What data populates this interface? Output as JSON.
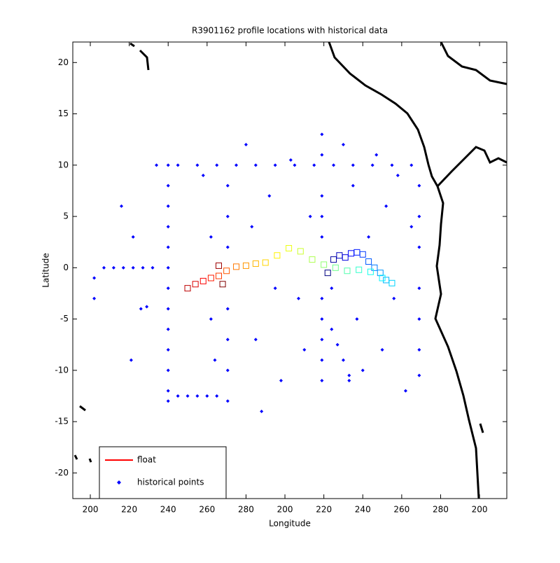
{
  "chart_data": {
    "type": "scatter",
    "title": "R3901162 profile locations with historical data",
    "x_label": "Longitude",
    "y_label": "Latitude",
    "xlim": [
      191,
      414
    ],
    "ylim": [
      -22.5,
      22
    ],
    "xticks": [
      200,
      220,
      240,
      260,
      280,
      {
        "value": 300,
        "label": "200"
      },
      {
        "value": 320,
        "label": "220"
      },
      {
        "value": 340,
        "label": "240"
      },
      {
        "value": 360,
        "label": "260"
      },
      {
        "value": 380,
        "label": "280"
      },
      {
        "value": 400,
        "label": "200"
      }
    ],
    "yticks": [
      -20,
      -15,
      -10,
      -5,
      0,
      5,
      10,
      15,
      20
    ],
    "legend": "lower left",
    "series": [
      {
        "name": "float",
        "color": "#ff0000",
        "x": [
          322,
          325,
          328,
          331,
          334,
          337,
          340,
          343,
          346,
          349,
          352,
          355,
          350,
          344,
          338,
          332,
          326,
          320,
          314,
          308,
          302,
          296,
          290,
          285,
          280,
          275,
          270,
          266,
          262,
          258,
          254,
          250,
          266,
          268
        ],
        "y": [
          -0.5,
          0.8,
          1.2,
          1.0,
          1.4,
          1.5,
          1.3,
          0.6,
          0.0,
          -0.5,
          -1.2,
          -1.5,
          -1.0,
          -0.4,
          -0.2,
          -0.3,
          0.0,
          0.3,
          0.8,
          1.6,
          1.9,
          1.2,
          0.5,
          0.4,
          0.2,
          0.1,
          -0.3,
          -0.8,
          -1.0,
          -1.3,
          -1.6,
          -2.0,
          0.2,
          -1.6
        ]
      },
      {
        "name": "historical points",
        "color": "#0000ff",
        "x": [
          240,
          240,
          240,
          240,
          240,
          240,
          240,
          240,
          240,
          240,
          240,
          240,
          240,
          234,
          245,
          255,
          265,
          275,
          285,
          295,
          305,
          315,
          325,
          335,
          345,
          355,
          365,
          319,
          319,
          319,
          319,
          319,
          319,
          319,
          319,
          319,
          319,
          369,
          369,
          369,
          369,
          369,
          369,
          369,
          207,
          212,
          217,
          222,
          227,
          232,
          245,
          250,
          255,
          260,
          265,
          270.6,
          270.6,
          270.6,
          270.6,
          270.6,
          270.6,
          270.6,
          216,
          222,
          226,
          229,
          202,
          202,
          221,
          258,
          262,
          262,
          264,
          280,
          283,
          285,
          288,
          292,
          295,
          298,
          303,
          307,
          310,
          313,
          330,
          335,
          337,
          340,
          343,
          347,
          350,
          352,
          356,
          358,
          362,
          365,
          324,
          333,
          324,
          327,
          330,
          333
        ],
        "y": [
          10,
          8,
          6,
          4,
          2,
          0,
          -2,
          -4,
          -6,
          -8,
          -10,
          -12,
          -13,
          10,
          10,
          10,
          10,
          10,
          10,
          10,
          10,
          10,
          10,
          10,
          10,
          10,
          10,
          13,
          11,
          7,
          5,
          3,
          -3,
          -5,
          -7,
          -9,
          -11,
          8,
          5,
          2,
          -2,
          -5,
          -8,
          -10.5,
          0,
          0,
          0,
          0,
          0,
          0,
          -12.5,
          -12.5,
          -12.5,
          -12.5,
          -12.5,
          8,
          5,
          2,
          -4,
          -7,
          -10,
          -13,
          6,
          3,
          -4,
          -3.8,
          -1,
          -3,
          -9,
          9,
          3,
          -5,
          -9,
          12,
          4,
          -7,
          -14,
          7,
          -2,
          -11,
          10.5,
          -3,
          -8,
          5,
          12,
          8,
          -5,
          -10,
          3,
          11,
          -8,
          6,
          -3,
          9,
          -12,
          4,
          -2,
          -11,
          -6,
          -7.5,
          -9,
          -10.5
        ]
      }
    ]
  }
}
